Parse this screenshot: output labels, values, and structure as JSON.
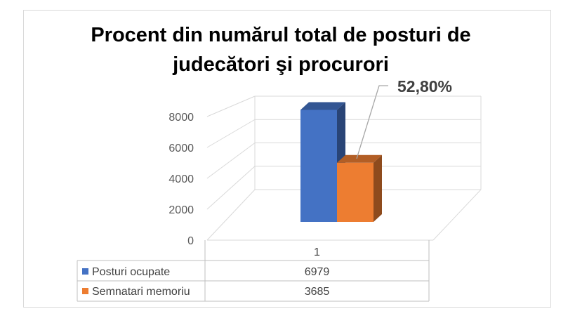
{
  "chart_data": {
    "type": "bar",
    "title_lines": [
      "Procent din numărul total de posturi de",
      "judecători şi procurori"
    ],
    "categories": [
      "1"
    ],
    "series": [
      {
        "name": "Posturi ocupate",
        "values": [
          6979
        ],
        "color": "#4472C4"
      },
      {
        "name": "Semnatari memoriu",
        "values": [
          3685
        ],
        "color": "#ED7D31"
      }
    ],
    "yticks": [
      0,
      2000,
      4000,
      6000,
      8000
    ],
    "ylim": [
      0,
      8000
    ],
    "data_label": "52,80%",
    "grid": true,
    "legend": "data-table-below"
  }
}
